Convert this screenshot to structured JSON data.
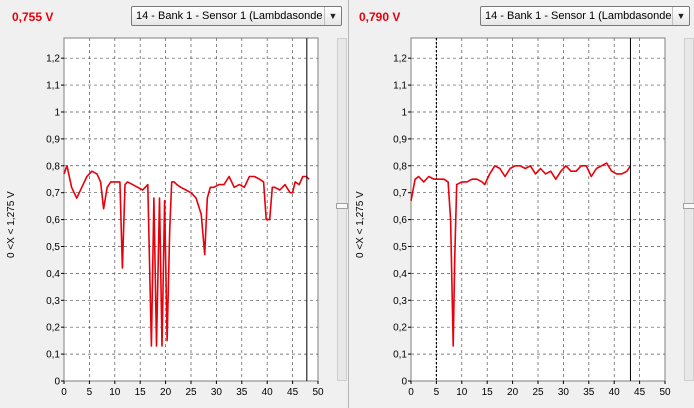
{
  "panels": [
    {
      "reading": "0,755 V",
      "sensor_selected": "14 - Bank 1 - Sensor 1 (Lambdasonde",
      "y_axis_title": "0   <X <   1,275  V"
    },
    {
      "reading": "0,790 V",
      "sensor_selected": "14 - Bank 1 - Sensor 1 (Lambdasonde",
      "y_axis_title": "0   <X <   1,275  V"
    }
  ],
  "colors": {
    "trace": "#e8000b",
    "reading": "#e8000b",
    "grid": "#555555",
    "plot_bg": "#ffffff"
  },
  "icons": {
    "dropdown": "chevron-down-icon"
  },
  "chart_data": [
    {
      "type": "line",
      "title": "",
      "xlabel": "",
      "ylabel": "0   <X <   1,275  V",
      "xlim": [
        0,
        50
      ],
      "ylim": [
        0,
        1.275
      ],
      "x_ticks": [
        "0",
        "5",
        "10",
        "15",
        "20",
        "25",
        "30",
        "35",
        "40",
        "45",
        "50"
      ],
      "y_ticks": [
        "0",
        "0,1",
        "0,2",
        "0,3",
        "0,4",
        "0,5",
        "0,6",
        "0,7",
        "0,8",
        "0,9",
        "1",
        "1,1",
        "1,2"
      ],
      "grid": true,
      "cursor_x": 47.8,
      "series": [
        {
          "x": [
            0,
            0.6,
            1.5,
            2.5,
            3.5,
            4.5,
            5.5,
            6.5,
            7.2,
            7.8,
            8.5,
            9.2,
            10,
            11,
            11.5,
            12,
            12.5,
            13.5,
            14.5,
            15.5,
            16.5,
            17.2,
            17.7,
            18.2,
            18.8,
            19.3,
            19.8,
            20.3,
            20.8,
            21.2,
            21.7,
            22.2,
            23,
            24,
            25,
            26,
            27,
            27.7,
            28.2,
            28.8,
            29.5,
            30.5,
            31.5,
            32.5,
            33.5,
            34.5,
            35.5,
            36.5,
            37.5,
            38.5,
            39.3,
            39.8,
            40.5,
            41,
            41.5,
            42.5,
            43.5,
            44.5,
            45,
            45.5,
            46.3,
            47,
            47.7,
            48.2
          ],
          "values": [
            0.77,
            0.8,
            0.72,
            0.68,
            0.72,
            0.76,
            0.78,
            0.77,
            0.74,
            0.64,
            0.72,
            0.74,
            0.74,
            0.74,
            0.42,
            0.73,
            0.74,
            0.73,
            0.72,
            0.71,
            0.73,
            0.13,
            0.68,
            0.13,
            0.68,
            0.13,
            0.67,
            0.15,
            0.56,
            0.74,
            0.74,
            0.73,
            0.72,
            0.71,
            0.7,
            0.68,
            0.62,
            0.47,
            0.68,
            0.72,
            0.72,
            0.73,
            0.73,
            0.76,
            0.72,
            0.73,
            0.72,
            0.76,
            0.76,
            0.75,
            0.74,
            0.6,
            0.6,
            0.72,
            0.72,
            0.71,
            0.73,
            0.7,
            0.7,
            0.74,
            0.73,
            0.76,
            0.76,
            0.75
          ]
        }
      ]
    },
    {
      "type": "line",
      "title": "",
      "xlabel": "",
      "ylabel": "0   <X <   1,275  V",
      "xlim": [
        0,
        50
      ],
      "ylim": [
        0,
        1.275
      ],
      "x_ticks": [
        "0",
        "5",
        "10",
        "15",
        "20",
        "25",
        "30",
        "35",
        "40",
        "45",
        "50"
      ],
      "y_ticks": [
        "0",
        "0,1",
        "0,2",
        "0,3",
        "0,4",
        "0,5",
        "0,6",
        "0,7",
        "0,8",
        "0,9",
        "1",
        "1,1",
        "1,2"
      ],
      "grid": true,
      "cursor_x": 43.2,
      "dashed_marker_x": 5,
      "series": [
        {
          "x": [
            0,
            0.8,
            1.5,
            2.5,
            3.5,
            4.5,
            5.5,
            6.5,
            7.3,
            7.8,
            8.3,
            8.6,
            9,
            10,
            11,
            12,
            13,
            14,
            14.5,
            15.5,
            16.5,
            17.5,
            18.5,
            19.5,
            20.5,
            21.5,
            22.5,
            23.5,
            24.5,
            25.5,
            26.5,
            27.5,
            28.5,
            29.5,
            30.5,
            31.5,
            32.5,
            33.5,
            34.5,
            35.5,
            36.5,
            37.5,
            38.5,
            39.5,
            40.5,
            41.5,
            42.5,
            43.2
          ],
          "values": [
            0.67,
            0.75,
            0.76,
            0.74,
            0.76,
            0.75,
            0.75,
            0.75,
            0.74,
            0.6,
            0.13,
            0.45,
            0.73,
            0.74,
            0.74,
            0.75,
            0.75,
            0.74,
            0.73,
            0.77,
            0.8,
            0.79,
            0.76,
            0.79,
            0.8,
            0.8,
            0.79,
            0.8,
            0.77,
            0.79,
            0.77,
            0.78,
            0.75,
            0.78,
            0.8,
            0.78,
            0.78,
            0.8,
            0.8,
            0.76,
            0.79,
            0.8,
            0.81,
            0.78,
            0.77,
            0.77,
            0.78,
            0.8
          ]
        }
      ]
    }
  ]
}
